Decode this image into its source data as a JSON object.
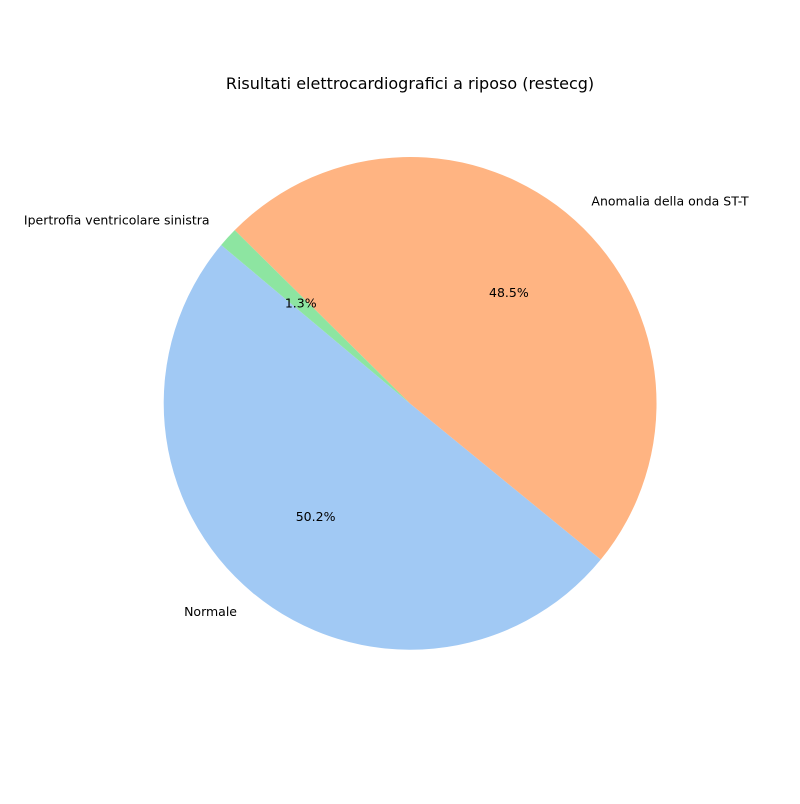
{
  "chart_data": {
    "type": "pie",
    "title": "Risultati elettrocardiografici a riposo (restecg)",
    "slices": [
      {
        "label": "Normale",
        "value": 50.2,
        "pct_label": "50.2%",
        "color": "#a1c9f4"
      },
      {
        "label": "Anomalia della onda ST-T",
        "value": 48.5,
        "pct_label": "48.5%",
        "color": "#ffb482"
      },
      {
        "label": "Ipertrofia ventricolare sinistra",
        "value": 1.3,
        "pct_label": "1.3%",
        "color": "#8de5a1"
      }
    ],
    "start_angle_deg": 140,
    "direction": "counterclockwise",
    "legend": "none"
  }
}
